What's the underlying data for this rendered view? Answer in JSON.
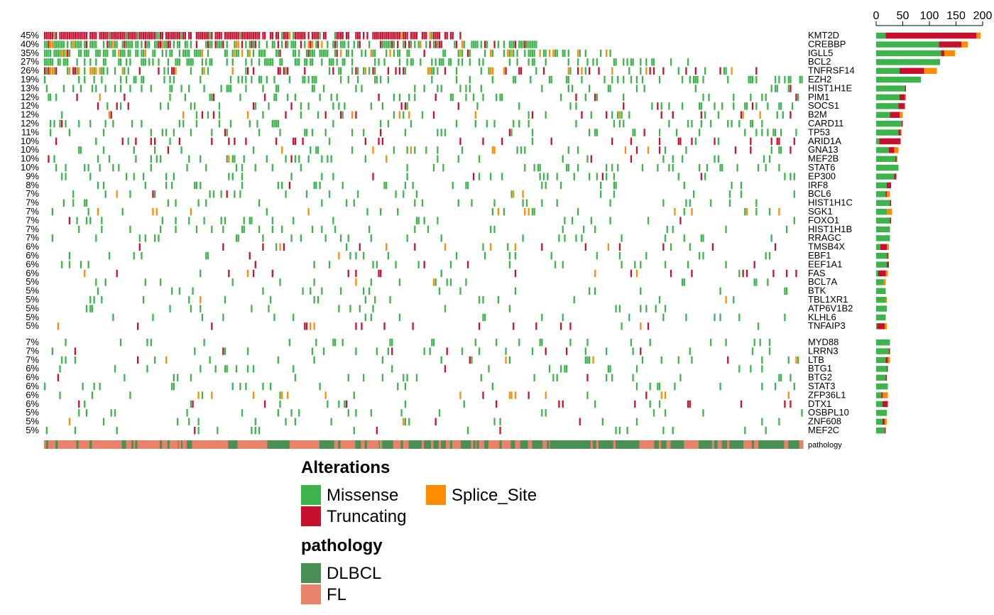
{
  "chart_data": {
    "type": "heatmap",
    "subtype": "oncoprint",
    "colors": {
      "Missense": "#3CB44B",
      "Truncating": "#C8102E",
      "Splice_Site": "#FF8C00",
      "DLBCL": "#4A8F55",
      "FL": "#E8836A"
    },
    "top_axis": {
      "ticks": [
        "0",
        "50",
        "100",
        "150",
        "200"
      ],
      "min": 0,
      "max": 200
    },
    "gene_groups": [
      [
        {
          "gene": "KMT2D",
          "pct": "45%",
          "mis": 18,
          "trunc": 170,
          "splice": 8
        },
        {
          "gene": "CREBBP",
          "pct": "40%",
          "mis": 118,
          "trunc": 42,
          "splice": 12
        },
        {
          "gene": "IGLL5",
          "pct": "35%",
          "mis": 122,
          "trunc": 6,
          "splice": 20
        },
        {
          "gene": "BCL2",
          "pct": "27%",
          "mis": 120,
          "trunc": 0,
          "splice": 0
        },
        {
          "gene": "TNFRSF14",
          "pct": "26%",
          "mis": 44,
          "trunc": 46,
          "splice": 24
        },
        {
          "gene": "EZH2",
          "pct": "19%",
          "mis": 84,
          "trunc": 0,
          "splice": 0
        },
        {
          "gene": "HIST1H1E",
          "pct": "13%",
          "mis": 54,
          "trunc": 2,
          "splice": 0
        },
        {
          "gene": "PIM1",
          "pct": "12%",
          "mis": 44,
          "trunc": 10,
          "splice": 2
        },
        {
          "gene": "SOCS1",
          "pct": "12%",
          "mis": 42,
          "trunc": 12,
          "splice": 0
        },
        {
          "gene": "B2M",
          "pct": "12%",
          "mis": 26,
          "trunc": 18,
          "splice": 6
        },
        {
          "gene": "CARD11",
          "pct": "12%",
          "mis": 48,
          "trunc": 2,
          "splice": 0
        },
        {
          "gene": "TP53",
          "pct": "11%",
          "mis": 42,
          "trunc": 4,
          "splice": 2
        },
        {
          "gene": "ARID1A",
          "pct": "10%",
          "mis": 6,
          "trunc": 40,
          "splice": 0
        },
        {
          "gene": "GNA13",
          "pct": "10%",
          "mis": 24,
          "trunc": 10,
          "splice": 8
        },
        {
          "gene": "MEF2B",
          "pct": "10%",
          "mis": 36,
          "trunc": 2,
          "splice": 2
        },
        {
          "gene": "STAT6",
          "pct": "10%",
          "mis": 42,
          "trunc": 0,
          "splice": 0
        },
        {
          "gene": "EP300",
          "pct": "9%",
          "mis": 34,
          "trunc": 4,
          "splice": 0
        },
        {
          "gene": "IRF8",
          "pct": "8%",
          "mis": 20,
          "trunc": 8,
          "splice": 0
        },
        {
          "gene": "BCL6",
          "pct": "7%",
          "mis": 18,
          "trunc": 2,
          "splice": 6
        },
        {
          "gene": "HIST1H1C",
          "pct": "7%",
          "mis": 26,
          "trunc": 2,
          "splice": 0
        },
        {
          "gene": "SGK1",
          "pct": "7%",
          "mis": 20,
          "trunc": 0,
          "splice": 10
        },
        {
          "gene": "FOXO1",
          "pct": "7%",
          "mis": 26,
          "trunc": 2,
          "splice": 0
        },
        {
          "gene": "HIST1H1B",
          "pct": "7%",
          "mis": 26,
          "trunc": 0,
          "splice": 0
        },
        {
          "gene": "RRAGC",
          "pct": "7%",
          "mis": 26,
          "trunc": 0,
          "splice": 0
        },
        {
          "gene": "TMSB4X",
          "pct": "6%",
          "mis": 8,
          "trunc": 12,
          "splice": 4
        },
        {
          "gene": "EBF1",
          "pct": "6%",
          "mis": 20,
          "trunc": 2,
          "splice": 2
        },
        {
          "gene": "EEF1A1",
          "pct": "6%",
          "mis": 20,
          "trunc": 4,
          "splice": 0
        },
        {
          "gene": "FAS",
          "pct": "6%",
          "mis": 4,
          "trunc": 14,
          "splice": 4
        },
        {
          "gene": "BCL7A",
          "pct": "5%",
          "mis": 14,
          "trunc": 0,
          "splice": 4
        },
        {
          "gene": "BTK",
          "pct": "5%",
          "mis": 18,
          "trunc": 0,
          "splice": 0
        },
        {
          "gene": "TBL1XR1",
          "pct": "5%",
          "mis": 18,
          "trunc": 0,
          "splice": 2
        },
        {
          "gene": "ATP6V1B2",
          "pct": "5%",
          "mis": 20,
          "trunc": 0,
          "splice": 0
        },
        {
          "gene": "KLHL6",
          "pct": "5%",
          "mis": 18,
          "trunc": 0,
          "splice": 0
        },
        {
          "gene": "TNFAIP3",
          "pct": "5%",
          "mis": 2,
          "trunc": 14,
          "splice": 4
        }
      ],
      [
        {
          "gene": "MYD88",
          "pct": "7%",
          "mis": 26,
          "trunc": 0,
          "splice": 0
        },
        {
          "gene": "LRRN3",
          "pct": "7%",
          "mis": 24,
          "trunc": 2,
          "splice": 0
        },
        {
          "gene": "LTB",
          "pct": "7%",
          "mis": 18,
          "trunc": 4,
          "splice": 4
        },
        {
          "gene": "BTG1",
          "pct": "6%",
          "mis": 20,
          "trunc": 2,
          "splice": 0
        },
        {
          "gene": "BTG2",
          "pct": "6%",
          "mis": 18,
          "trunc": 2,
          "splice": 0
        },
        {
          "gene": "STAT3",
          "pct": "6%",
          "mis": 22,
          "trunc": 0,
          "splice": 0
        },
        {
          "gene": "ZFP36L1",
          "pct": "6%",
          "mis": 10,
          "trunc": 2,
          "splice": 10
        },
        {
          "gene": "DTX1",
          "pct": "6%",
          "mis": 12,
          "trunc": 10,
          "splice": 0
        },
        {
          "gene": "OSBPL10",
          "pct": "5%",
          "mis": 20,
          "trunc": 0,
          "splice": 0
        },
        {
          "gene": "ZNF608",
          "pct": "5%",
          "mis": 12,
          "trunc": 4,
          "splice": 4
        },
        {
          "gene": "MEF2C",
          "pct": "5%",
          "mis": 16,
          "trunc": 2,
          "splice": 0
        }
      ]
    ],
    "pathology_label": "pathology",
    "pathology_blocks": [
      {
        "type": "FL",
        "frac": 0.18
      },
      {
        "type": "DLBCL",
        "frac": 0.02
      },
      {
        "type": "FL",
        "frac": 0.05
      },
      {
        "type": "DLBCL",
        "frac": 0.01
      },
      {
        "type": "FL",
        "frac": 0.04
      },
      {
        "type": "DLBCL",
        "frac": 0.03
      },
      {
        "type": "FL",
        "frac": 0.04
      },
      {
        "type": "DLBCL",
        "frac": 0.02
      },
      {
        "type": "FL",
        "frac": 0.03
      },
      {
        "type": "DLBCL",
        "frac": 0.01
      },
      {
        "type": "FL",
        "frac": 0.02
      },
      {
        "type": "DLBCL",
        "frac": 0.02
      },
      {
        "type": "FL",
        "frac": 0.02
      },
      {
        "type": "DLBCL",
        "frac": 0.05
      },
      {
        "type": "FL",
        "frac": 0.02
      },
      {
        "type": "DLBCL",
        "frac": 0.02
      },
      {
        "type": "FL",
        "frac": 0.06
      },
      {
        "type": "DLBCL",
        "frac": 0.03
      },
      {
        "type": "FL",
        "frac": 0.01
      },
      {
        "type": "DLBCL",
        "frac": 0.12
      },
      {
        "type": "FL",
        "frac": 0.02
      },
      {
        "type": "DLBCL",
        "frac": 0.04
      },
      {
        "type": "FL",
        "frac": 0.02
      },
      {
        "type": "DLBCL",
        "frac": 0.06
      },
      {
        "type": "FL",
        "frac": 0.02
      },
      {
        "type": "DLBCL",
        "frac": 0.06
      }
    ],
    "n_samples": 400
  },
  "legend": {
    "alterations_title": "Alterations",
    "alterations": [
      {
        "key": "Missense",
        "label": "Missense"
      },
      {
        "key": "Splice_Site",
        "label": "Splice_Site"
      },
      {
        "key": "Truncating",
        "label": "Truncating"
      }
    ],
    "pathology_title": "pathology",
    "pathology": [
      {
        "key": "DLBCL",
        "label": "DLBCL"
      },
      {
        "key": "FL",
        "label": "FL"
      }
    ]
  }
}
